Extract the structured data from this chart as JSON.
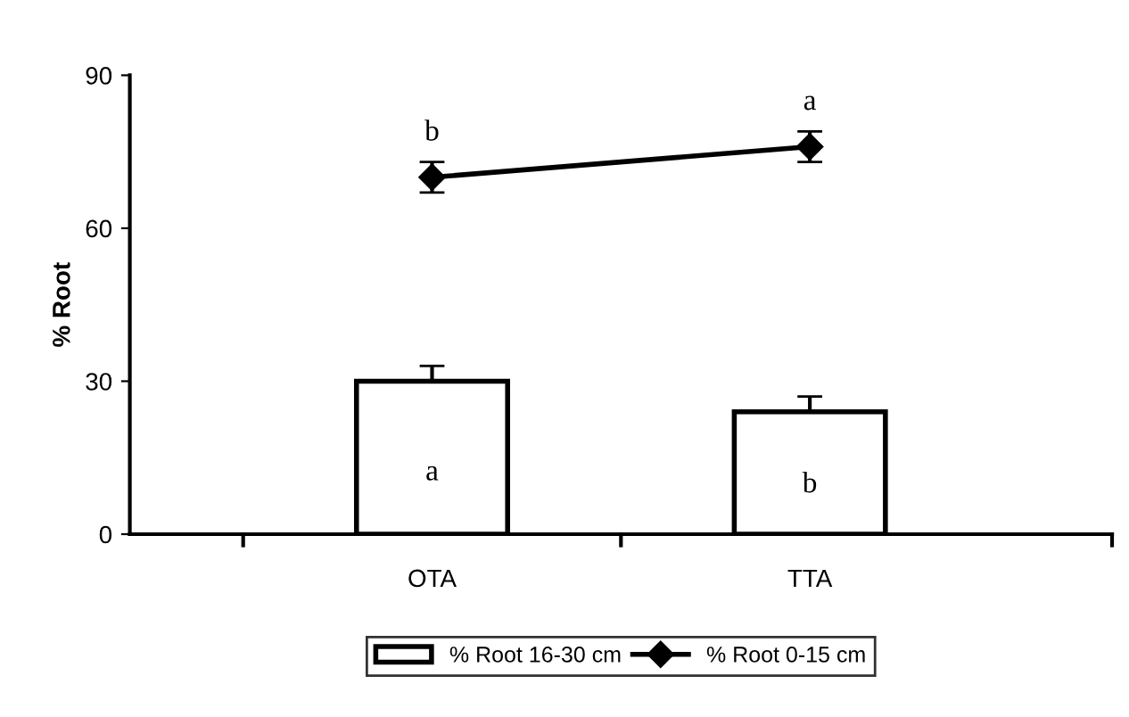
{
  "chart_data": {
    "type": "bar",
    "ylabel": "% Root",
    "categories": [
      "OTA",
      "TTA"
    ],
    "series": [
      {
        "name": "% Root 16-30 cm",
        "color": "#ffffff",
        "values": [
          30,
          24
        ],
        "errors": [
          3,
          3
        ]
      },
      {
        "name": "% Root 0-15 cm",
        "type": "line",
        "color": "#000000",
        "values": [
          70,
          76
        ],
        "errors": [
          3,
          3
        ],
        "marker": "diamond"
      }
    ],
    "ylim": [
      0,
      90
    ],
    "yticks": [
      0,
      30,
      60,
      90
    ],
    "grid": false,
    "legend": "bottom",
    "annotations": [
      "b",
      "a",
      "a",
      "b"
    ]
  }
}
